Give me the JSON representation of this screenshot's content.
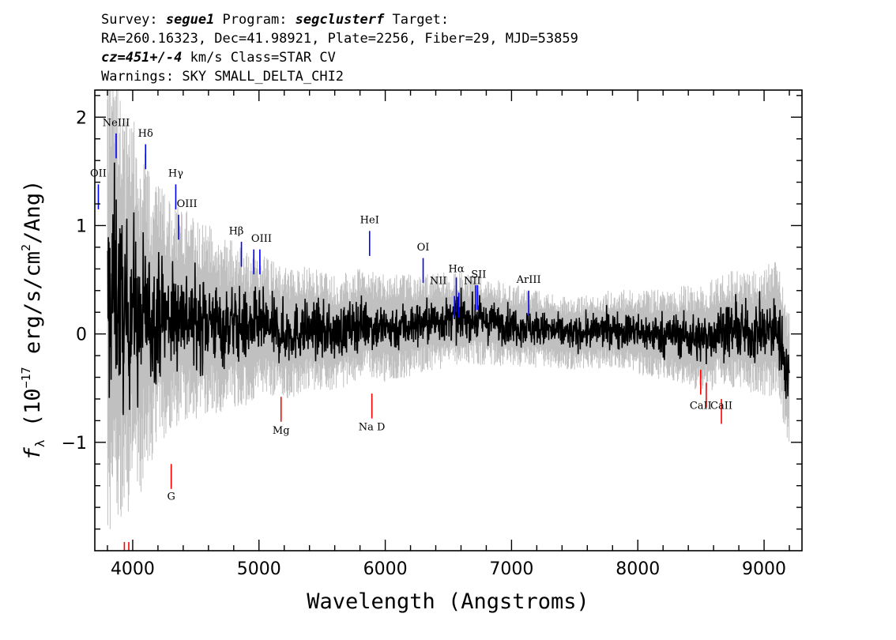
{
  "header": {
    "line1_a": "Survey: ",
    "survey": "segue1",
    "line1_b": " Program: ",
    "program": "segclusterf",
    "line1_c": " Target:",
    "line2": "RA=260.16323, Dec=41.98921, Plate=2256, Fiber=29, MJD=53859",
    "cz": "cz=451+/-4",
    "line3_b": " km/s Class=STAR CV",
    "line4": "Warnings: SKY SMALL_DELTA_CHI2"
  },
  "chart_data": {
    "type": "line",
    "title": "",
    "xlabel": "Wavelength (Angstroms)",
    "ylabel_main": "f",
    "ylabel_sub": "λ",
    "ylabel_rest": " (10",
    "ylabel_exp": "−17",
    "ylabel_tail": " erg/s/cm",
    "ylabel_sq": "2",
    "ylabel_end": "/Ang)",
    "xlim": [
      3700,
      9300
    ],
    "ylim": [
      -2.0,
      2.25
    ],
    "x_ticks": [
      4000,
      5000,
      6000,
      7000,
      8000,
      9000
    ],
    "x_tick_labels": [
      "4000",
      "5000",
      "6000",
      "7000",
      "8000",
      "9000"
    ],
    "y_ticks": [
      -1,
      0,
      1,
      2
    ],
    "y_tick_labels": [
      "−1",
      "0",
      "1",
      "2"
    ],
    "series": [
      {
        "role": "flux",
        "color": "#000000",
        "x": [
          3800,
          3850,
          3900,
          3950,
          4000,
          4050,
          4100,
          4150,
          4200,
          4300,
          4400,
          4500,
          4600,
          4700,
          4800,
          4900,
          5000,
          5200,
          5400,
          5600,
          5800,
          6000,
          6300,
          6600,
          6900,
          7200,
          7500,
          7800,
          8100,
          8300,
          8500,
          8700,
          8900,
          9100,
          9200
        ],
        "y": [
          0.2,
          0.5,
          0.3,
          0.1,
          0.35,
          0.0,
          0.25,
          0.1,
          0.2,
          0.15,
          0.2,
          0.1,
          0.15,
          0.05,
          0.1,
          0.05,
          0.1,
          0.0,
          0.05,
          0.0,
          0.1,
          0.05,
          0.1,
          0.15,
          0.1,
          0.05,
          0.0,
          0.05,
          0.0,
          0.0,
          -0.05,
          0.05,
          0.0,
          0.05,
          -0.4
        ]
      },
      {
        "role": "error",
        "color": "#c0c0c0",
        "x": [
          3800,
          3900,
          4000,
          4100,
          4200,
          4400,
          4600,
          4800,
          5000,
          5500,
          6000,
          6500,
          7000,
          7500,
          8000,
          8500,
          9000,
          9200
        ],
        "y": [
          2.2,
          1.8,
          1.6,
          1.3,
          1.1,
          0.9,
          0.8,
          0.7,
          0.6,
          0.5,
          0.45,
          0.4,
          0.35,
          0.3,
          0.35,
          0.45,
          0.55,
          0.6
        ]
      }
    ],
    "emission_lines": [
      {
        "label": "OII",
        "x": 3728,
        "y_top": 1.38,
        "y_bot": 1.15,
        "lx": 3728,
        "ly": 1.45
      },
      {
        "label": "NeIII",
        "x": 3869,
        "y_top": 1.85,
        "y_bot": 1.62,
        "lx": 3869,
        "ly": 1.92
      },
      {
        "label": "Hδ",
        "x": 4102,
        "y_top": 1.75,
        "y_bot": 1.52,
        "lx": 4102,
        "ly": 1.82
      },
      {
        "label": "Hγ",
        "x": 4341,
        "y_top": 1.38,
        "y_bot": 1.15,
        "lx": 4341,
        "ly": 1.45
      },
      {
        "label": "OIII",
        "x": 4363,
        "y_top": 1.1,
        "y_bot": 0.87,
        "lx": 4430,
        "ly": 1.17
      },
      {
        "label": "Hβ",
        "x": 4861,
        "y_top": 0.85,
        "y_bot": 0.62,
        "lx": 4820,
        "ly": 0.92
      },
      {
        "label": "OIII",
        "x": 4959,
        "y_top": 0.78,
        "y_bot": 0.55,
        "lx": 5020,
        "ly": 0.85
      },
      {
        "label": "OIII",
        "x": 5007,
        "y_top": 0.78,
        "y_bot": 0.55,
        "lx": 5007,
        "ly": 0.85
      },
      {
        "label": "HeI",
        "x": 5876,
        "y_top": 0.95,
        "y_bot": 0.72,
        "lx": 5876,
        "ly": 1.02
      },
      {
        "label": "OI",
        "x": 6300,
        "y_top": 0.7,
        "y_bot": 0.47,
        "lx": 6300,
        "ly": 0.77
      },
      {
        "label": "NII",
        "x": 6548,
        "y_top": 0.35,
        "y_bot": 0.15,
        "lx": 6420,
        "ly": 0.46
      },
      {
        "label": "Hα",
        "x": 6563,
        "y_top": 0.52,
        "y_bot": 0.2,
        "lx": 6563,
        "ly": 0.57
      },
      {
        "label": "NII",
        "x": 6583,
        "y_top": 0.38,
        "y_bot": 0.15,
        "lx": 6690,
        "ly": 0.46
      },
      {
        "label": "SII",
        "x": 6716,
        "y_top": 0.45,
        "y_bot": 0.22,
        "lx": 6740,
        "ly": 0.52
      },
      {
        "label": "SII",
        "x": 6731,
        "y_top": 0.45,
        "y_bot": 0.22,
        "lx": 6731,
        "ly": 0.52
      },
      {
        "label": "ArIII",
        "x": 7136,
        "y_top": 0.4,
        "y_bot": 0.17,
        "lx": 7136,
        "ly": 0.47
      }
    ],
    "absorption_lines": [
      {
        "label": "G",
        "x": 4305,
        "y_top": -1.2,
        "y_bot": -1.43,
        "lx": 4305,
        "ly": -1.53
      },
      {
        "label": "Mg",
        "x": 5175,
        "y_top": -0.58,
        "y_bot": -0.81,
        "lx": 5175,
        "ly": -0.92
      },
      {
        "label": "Na D",
        "x": 5894,
        "y_top": -0.55,
        "y_bot": -0.78,
        "lx": 5894,
        "ly": -0.89
      },
      {
        "label": "CaII",
        "x": 8498,
        "y_top": -0.33,
        "y_bot": -0.56,
        "lx": 8498,
        "ly": -0.69
      },
      {
        "label": "CaII",
        "x": 8542,
        "y_top": -0.45,
        "y_bot": -0.68,
        "lx": 8542,
        "ly": -0.69
      },
      {
        "label": "CaII",
        "x": 8662,
        "y_top": -0.6,
        "y_bot": -0.83,
        "lx": 8662,
        "ly": -0.69
      },
      {
        "label": "",
        "x": 3934,
        "y_top": -1.92,
        "y_bot": -2.0
      },
      {
        "label": "",
        "x": 3969,
        "y_top": -1.92,
        "y_bot": -2.0
      }
    ],
    "emission_color": "#0000ff",
    "absorption_color": "#ff0000"
  }
}
